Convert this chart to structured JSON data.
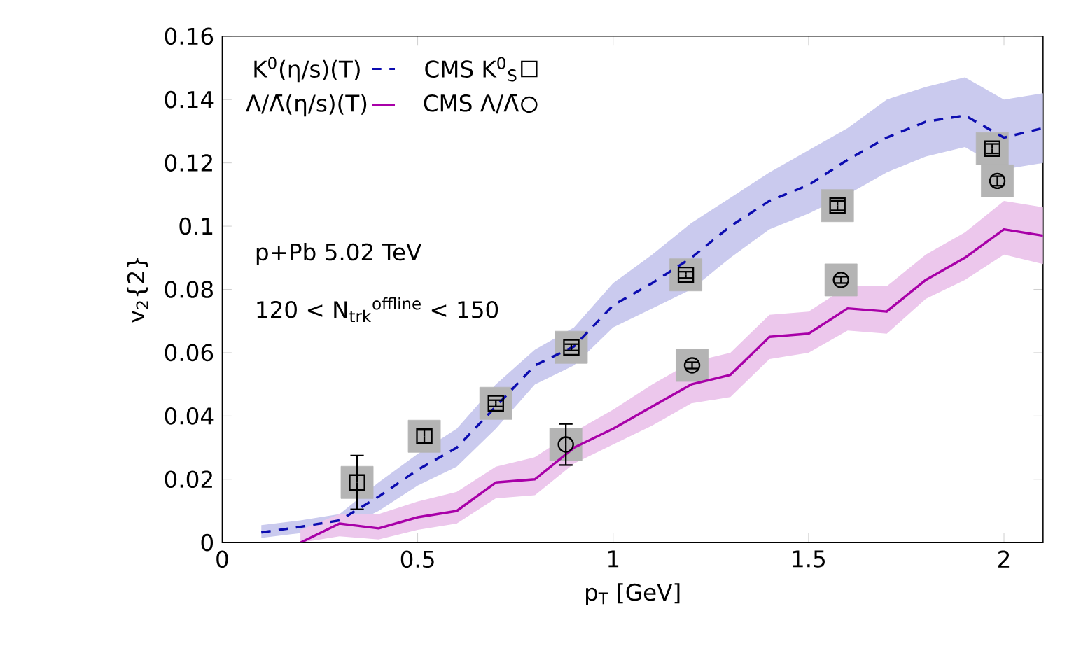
{
  "chart_data": {
    "type": "scatter",
    "xlabel": "p$_{T}$ [GeV]",
    "ylabel": "v$_{2}${2}",
    "xlim": [
      0,
      2.1
    ],
    "ylim": [
      0,
      0.16
    ],
    "xticks": [
      0,
      0.5,
      1,
      1.5,
      2
    ],
    "yticks": [
      0,
      0.02,
      0.04,
      0.06,
      0.08,
      0.1,
      0.12,
      0.14,
      0.16
    ],
    "legend": "top left",
    "grid": false,
    "annotations": [
      "p+Pb 5.02 TeV",
      "120 <  N$_{trk}$$^{offline}$ < 150"
    ],
    "series": [
      {
        "name": "K$^{0}$(η/s)(T)",
        "type": "line",
        "line_style": "dashed",
        "color": "#0c0cb0",
        "x": [
          0.1,
          0.2,
          0.3,
          0.4,
          0.5,
          0.6,
          0.7,
          0.8,
          0.9,
          1.0,
          1.1,
          1.2,
          1.3,
          1.4,
          1.5,
          1.6,
          1.7,
          1.8,
          1.9,
          2.0,
          2.1
        ],
        "values": [
          0.0032,
          0.005,
          0.007,
          0.0145,
          0.023,
          0.03,
          0.043,
          0.056,
          0.062,
          0.075,
          0.082,
          0.09,
          0.1,
          0.108,
          0.113,
          0.121,
          0.128,
          0.133,
          0.135,
          0.128,
          0.131
        ],
        "lower": [
          0.0015,
          0.003,
          0.004,
          0.01,
          0.018,
          0.024,
          0.036,
          0.05,
          0.056,
          0.068,
          0.074,
          0.08,
          0.09,
          0.099,
          0.104,
          0.11,
          0.117,
          0.122,
          0.125,
          0.118,
          0.12
        ],
        "upper": [
          0.0055,
          0.007,
          0.009,
          0.019,
          0.028,
          0.036,
          0.05,
          0.061,
          0.068,
          0.082,
          0.091,
          0.101,
          0.109,
          0.117,
          0.124,
          0.131,
          0.14,
          0.144,
          0.147,
          0.14,
          0.142
        ]
      },
      {
        "type": "scatter",
        "marker": "square",
        "color": "#b4b4b4",
        "x": [
          0.345,
          0.517,
          0.7,
          0.893,
          1.186,
          1.574,
          1.97
        ],
        "values": [
          0.019,
          0.0336,
          0.044,
          0.0617,
          0.0846,
          0.1065,
          0.1245
        ]
      },
      {
        "name": "CMS K$^{0}$$_{S}$",
        "type": "scatter",
        "marker": "square",
        "color": "#000000",
        "x": [
          0.345,
          0.517,
          0.7,
          0.893,
          1.186,
          1.574,
          1.97
        ],
        "values": [
          0.019,
          0.0336,
          0.044,
          0.0617,
          0.0846,
          0.1065,
          0.1245
        ],
        "errors": [
          0.0085,
          0.002,
          0.001,
          0.001,
          0.001,
          0.0015,
          0.0015
        ]
      },
      {
        "name": "Λ/Λ̄(η/s)(T)",
        "type": "line",
        "line_style": "solid",
        "color": "#a800a8",
        "x": [
          0.2,
          0.3,
          0.4,
          0.5,
          0.6,
          0.7,
          0.8,
          0.9,
          1.0,
          1.1,
          1.2,
          1.3,
          1.4,
          1.5,
          1.6,
          1.7,
          1.8,
          1.9,
          2.0,
          2.1
        ],
        "values": [
          0,
          0.006,
          0.0045,
          0.008,
          0.01,
          0.019,
          0.02,
          0.03,
          0.036,
          0.043,
          0.05,
          0.053,
          0.065,
          0.066,
          0.074,
          0.073,
          0.083,
          0.09,
          0.099,
          0.097
        ],
        "lower": [
          0,
          0.002,
          0.001,
          0.004,
          0.006,
          0.014,
          0.015,
          0.025,
          0.031,
          0.037,
          0.044,
          0.046,
          0.058,
          0.06,
          0.067,
          0.066,
          0.077,
          0.083,
          0.091,
          0.088
        ],
        "upper": [
          0.004,
          0.009,
          0.009,
          0.013,
          0.016,
          0.024,
          0.027,
          0.035,
          0.042,
          0.05,
          0.057,
          0.06,
          0.072,
          0.073,
          0.081,
          0.081,
          0.091,
          0.098,
          0.108,
          0.106
        ]
      },
      {
        "marker": "square",
        "color": "#b4b4b4",
        "x": [
          0.879,
          1.202,
          1.583,
          1.983
        ],
        "values": [
          0.031,
          0.056,
          0.083,
          0.1143
        ]
      },
      {
        "name": "CMS Λ/Λ̄",
        "type": "scatter",
        "marker": "circle",
        "color": "#000000",
        "x": [
          0.879,
          1.202,
          1.583,
          1.983
        ],
        "values": [
          0.031,
          0.056,
          0.083,
          0.1143
        ],
        "errors": [
          0.0065,
          0.001,
          0.001,
          0.0015
        ]
      }
    ]
  }
}
